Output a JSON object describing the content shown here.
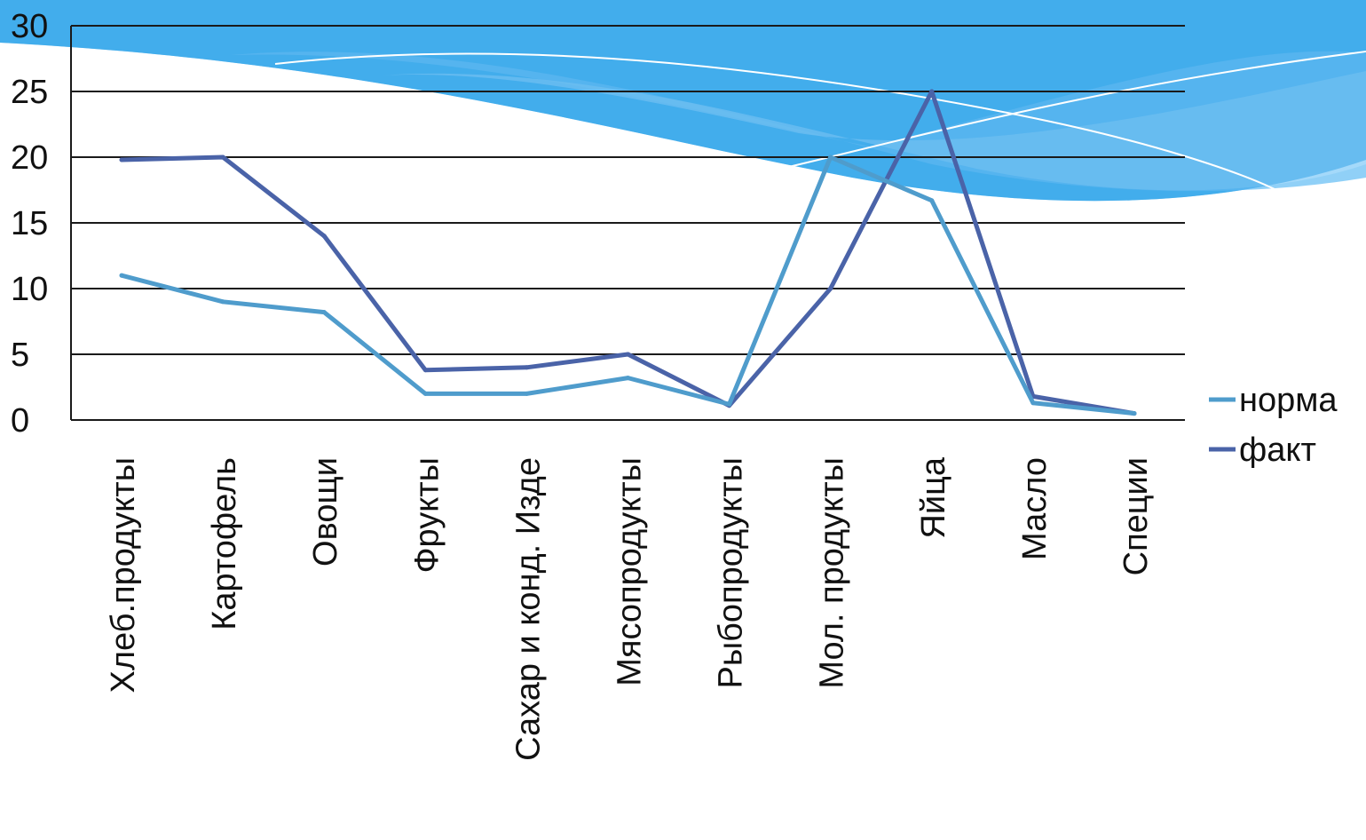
{
  "theme": {
    "wave_colors": [
      "#3fa9ec",
      "#5bbcf4",
      "#8ed0f8",
      "#b9e2fb"
    ],
    "gridline_color": "#1a1a1a"
  },
  "chart_data": {
    "type": "line",
    "categories": [
      "Хлеб.продукты",
      "Картофель",
      "Овощи",
      "Фрукты",
      "Сахар и конд. Изде",
      "Мясопродукты",
      "Рыбопродукты",
      "Мол. продукты",
      "Яйца",
      "Масло",
      "Специи"
    ],
    "series": [
      {
        "name": "норма",
        "color": "#4f9ccc",
        "values": [
          11,
          9,
          8.2,
          2,
          2,
          3.2,
          1.2,
          20,
          16.7,
          1.3,
          0.5
        ]
      },
      {
        "name": "факт",
        "color": "#4a63a8",
        "values": [
          19.8,
          20,
          14,
          3.8,
          4,
          5,
          1.1,
          10,
          25,
          1.8,
          0.5
        ]
      }
    ],
    "ylim": [
      0,
      30
    ],
    "yticks": [
      "0",
      "5",
      "10",
      "15",
      "20",
      "25",
      "30"
    ],
    "grid": true,
    "legend_position": "right",
    "title": "",
    "xlabel": "",
    "ylabel": ""
  }
}
